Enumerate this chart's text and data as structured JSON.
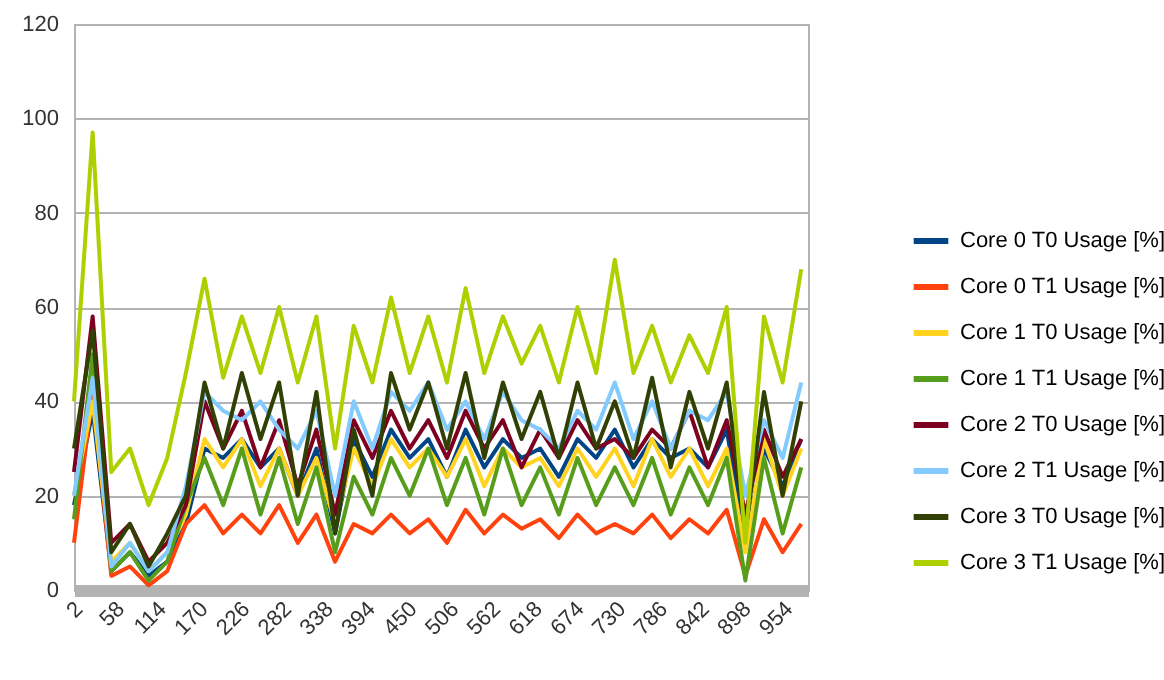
{
  "chart_data": {
    "type": "line",
    "x": [
      2,
      27,
      52,
      77,
      102,
      127,
      152,
      177,
      202,
      227,
      252,
      277,
      302,
      327,
      352,
      377,
      402,
      427,
      452,
      477,
      502,
      527,
      552,
      577,
      602,
      627,
      652,
      677,
      702,
      727,
      752,
      777,
      802,
      827,
      852,
      877,
      902,
      927,
      952,
      977
    ],
    "xlim": [
      2,
      986
    ],
    "xticks": [
      2,
      58,
      114,
      170,
      226,
      282,
      338,
      394,
      450,
      506,
      562,
      618,
      674,
      730,
      786,
      842,
      898,
      954
    ],
    "ylim": [
      0,
      120
    ],
    "yticks": [
      0,
      20,
      40,
      60,
      80,
      100,
      120
    ],
    "grid": "y",
    "legend": "right",
    "series": [
      {
        "name": "Core 0 T0 Usage [%]",
        "color": "#004586",
        "values": [
          18,
          38,
          4,
          8,
          3,
          6,
          14,
          30,
          28,
          32,
          26,
          30,
          20,
          30,
          12,
          32,
          24,
          34,
          28,
          32,
          24,
          34,
          26,
          32,
          28,
          30,
          24,
          32,
          28,
          34,
          26,
          32,
          28,
          30,
          26,
          34,
          10,
          30,
          22,
          32
        ]
      },
      {
        "name": "Core 0 T1 Usage [%]",
        "color": "#ff420e",
        "values": [
          10,
          42,
          3,
          5,
          1,
          4,
          14,
          18,
          12,
          16,
          12,
          18,
          10,
          16,
          6,
          14,
          12,
          16,
          12,
          15,
          10,
          17,
          12,
          16,
          13,
          15,
          11,
          16,
          12,
          14,
          12,
          16,
          11,
          15,
          12,
          17,
          3,
          15,
          8,
          14
        ]
      },
      {
        "name": "Core 1 T0 Usage [%]",
        "color": "#ffd320",
        "values": [
          20,
          40,
          6,
          10,
          4,
          8,
          16,
          32,
          26,
          32,
          22,
          30,
          20,
          28,
          14,
          30,
          22,
          32,
          26,
          30,
          24,
          32,
          22,
          30,
          26,
          28,
          22,
          30,
          24,
          30,
          22,
          32,
          24,
          30,
          22,
          30,
          8,
          32,
          20,
          30
        ]
      },
      {
        "name": "Core 1 T1 Usage [%]",
        "color": "#579d1c",
        "values": [
          15,
          50,
          4,
          8,
          2,
          6,
          18,
          28,
          18,
          30,
          16,
          28,
          14,
          26,
          8,
          24,
          16,
          28,
          20,
          30,
          18,
          28,
          16,
          30,
          18,
          26,
          16,
          28,
          18,
          26,
          18,
          28,
          16,
          26,
          18,
          28,
          2,
          28,
          12,
          26
        ]
      },
      {
        "name": "Core 2 T0 Usage [%]",
        "color": "#7e0021",
        "values": [
          25,
          58,
          10,
          14,
          6,
          10,
          18,
          40,
          30,
          38,
          26,
          36,
          22,
          34,
          16,
          36,
          28,
          38,
          30,
          36,
          28,
          38,
          30,
          36,
          26,
          34,
          28,
          36,
          30,
          32,
          28,
          34,
          30,
          38,
          26,
          36,
          16,
          34,
          24,
          32
        ]
      },
      {
        "name": "Core 2 T1 Usage [%]",
        "color": "#83caff",
        "values": [
          20,
          45,
          5,
          10,
          4,
          8,
          22,
          42,
          38,
          36,
          40,
          34,
          30,
          38,
          20,
          40,
          30,
          42,
          38,
          44,
          34,
          40,
          32,
          42,
          36,
          34,
          30,
          38,
          34,
          44,
          32,
          40,
          30,
          38,
          36,
          42,
          20,
          36,
          28,
          44
        ]
      },
      {
        "name": "Core 3 T0 Usage [%]",
        "color": "#314004",
        "values": [
          30,
          55,
          8,
          14,
          5,
          12,
          20,
          44,
          30,
          46,
          32,
          44,
          20,
          42,
          12,
          34,
          20,
          46,
          34,
          44,
          30,
          46,
          28,
          44,
          32,
          42,
          28,
          44,
          30,
          40,
          28,
          45,
          26,
          42,
          30,
          44,
          12,
          42,
          20,
          40
        ]
      },
      {
        "name": "Core 3 T1 Usage [%]",
        "color": "#aecf00",
        "values": [
          40,
          97,
          25,
          30,
          18,
          28,
          46,
          66,
          45,
          58,
          46,
          60,
          44,
          58,
          30,
          56,
          44,
          62,
          46,
          58,
          44,
          64,
          46,
          58,
          48,
          56,
          44,
          60,
          46,
          70,
          46,
          56,
          44,
          54,
          46,
          60,
          10,
          58,
          44,
          68
        ]
      }
    ]
  }
}
